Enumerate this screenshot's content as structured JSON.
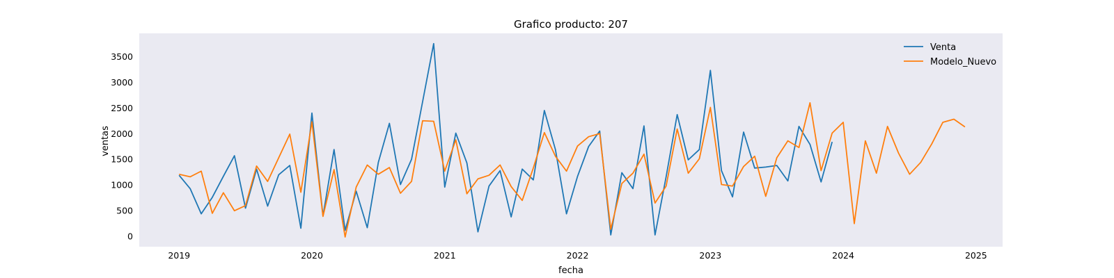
{
  "chart_data": {
    "type": "line",
    "title": "Grafico producto: 207",
    "xlabel": "fecha",
    "ylabel": "ventas",
    "ylim": [
      -200,
      3950
    ],
    "xlim": [
      2018.7,
      2025.2
    ],
    "grid": false,
    "legend_position": "top-right",
    "background_color": "#eaeaf2",
    "x_ticks": [
      {
        "value": 2019,
        "label": "2019"
      },
      {
        "value": 2020,
        "label": "2020"
      },
      {
        "value": 2021,
        "label": "2021"
      },
      {
        "value": 2022,
        "label": "2022"
      },
      {
        "value": 2023,
        "label": "2023"
      },
      {
        "value": 2024,
        "label": "2024"
      },
      {
        "value": 2025,
        "label": "2025"
      }
    ],
    "y_ticks": [
      {
        "value": 0,
        "label": "0"
      },
      {
        "value": 500,
        "label": "500"
      },
      {
        "value": 1000,
        "label": "1000"
      },
      {
        "value": 1500,
        "label": "1500"
      },
      {
        "value": 2000,
        "label": "2000"
      },
      {
        "value": 2500,
        "label": "2500"
      },
      {
        "value": 3000,
        "label": "3000"
      },
      {
        "value": 3500,
        "label": "3500"
      }
    ],
    "series": [
      {
        "name": "Venta",
        "color": "#1f77b4",
        "x": [
          "2019-01",
          "2019-02",
          "2019-03",
          "2019-04",
          "2019-05",
          "2019-06",
          "2019-07",
          "2019-08",
          "2019-09",
          "2019-10",
          "2019-11",
          "2019-12",
          "2020-01",
          "2020-02",
          "2020-03",
          "2020-04",
          "2020-05",
          "2020-06",
          "2020-07",
          "2020-08",
          "2020-09",
          "2020-10",
          "2020-11",
          "2020-12",
          "2021-01",
          "2021-02",
          "2021-03",
          "2021-04",
          "2021-05",
          "2021-06",
          "2021-07",
          "2021-08",
          "2021-09",
          "2021-10",
          "2021-11",
          "2021-12",
          "2022-01",
          "2022-02",
          "2022-03",
          "2022-04",
          "2022-05",
          "2022-06",
          "2022-07",
          "2022-08",
          "2022-09",
          "2022-10",
          "2022-11",
          "2022-12",
          "2023-01",
          "2023-02",
          "2023-03",
          "2023-04",
          "2023-05",
          "2023-06",
          "2023-07",
          "2023-08",
          "2023-09",
          "2023-10",
          "2023-11",
          "2023-12"
        ],
        "values": [
          1190,
          930,
          440,
          760,
          1170,
          1570,
          550,
          1310,
          590,
          1200,
          1380,
          160,
          2400,
          400,
          1690,
          120,
          880,
          170,
          1440,
          2200,
          1010,
          1500,
          2620,
          3750,
          960,
          2010,
          1430,
          90,
          980,
          1280,
          380,
          1310,
          1100,
          2450,
          1690,
          440,
          1170,
          1750,
          2050,
          30,
          1240,
          930,
          2150,
          30,
          1160,
          2370,
          1490,
          1690,
          3230,
          1280,
          770,
          2030,
          1330,
          1350,
          1380,
          1080,
          2140,
          1790,
          1060,
          1840
        ]
      },
      {
        "name": "Modelo_Nuevo",
        "color": "#ff7f0e",
        "x": [
          "2019-01",
          "2019-02",
          "2019-03",
          "2019-04",
          "2019-05",
          "2019-06",
          "2019-07",
          "2019-08",
          "2019-09",
          "2019-10",
          "2019-11",
          "2019-12",
          "2020-01",
          "2020-02",
          "2020-03",
          "2020-04",
          "2020-05",
          "2020-06",
          "2020-07",
          "2020-08",
          "2020-09",
          "2020-10",
          "2020-11",
          "2020-12",
          "2021-01",
          "2021-02",
          "2021-03",
          "2021-04",
          "2021-05",
          "2021-06",
          "2021-07",
          "2021-08",
          "2021-09",
          "2021-10",
          "2021-11",
          "2021-12",
          "2022-01",
          "2022-02",
          "2022-03",
          "2022-04",
          "2022-05",
          "2022-06",
          "2022-07",
          "2022-08",
          "2022-09",
          "2022-10",
          "2022-11",
          "2022-12",
          "2023-01",
          "2023-02",
          "2023-03",
          "2023-04",
          "2023-05",
          "2023-06",
          "2023-07",
          "2023-08",
          "2023-09",
          "2023-10",
          "2023-11",
          "2023-12",
          "2024-01",
          "2024-02",
          "2024-03",
          "2024-04",
          "2024-05",
          "2024-06",
          "2024-07",
          "2024-08",
          "2024-09",
          "2024-10",
          "2024-11",
          "2024-12"
        ],
        "values": [
          1210,
          1160,
          1270,
          450,
          850,
          500,
          600,
          1370,
          1070,
          1530,
          1990,
          860,
          2230,
          390,
          1300,
          -10,
          960,
          1390,
          1210,
          1340,
          840,
          1070,
          2250,
          2240,
          1270,
          1880,
          830,
          1120,
          1190,
          1390,
          970,
          700,
          1330,
          2020,
          1560,
          1270,
          1760,
          1940,
          2000,
          140,
          1030,
          1230,
          1600,
          650,
          980,
          2090,
          1230,
          1510,
          2510,
          1010,
          980,
          1360,
          1560,
          780,
          1530,
          1860,
          1730,
          2600,
          1280,
          2010,
          2220,
          250,
          1860,
          1230,
          2140,
          1620,
          1210,
          1440,
          1800,
          2220,
          2280,
          2130
        ]
      }
    ]
  }
}
